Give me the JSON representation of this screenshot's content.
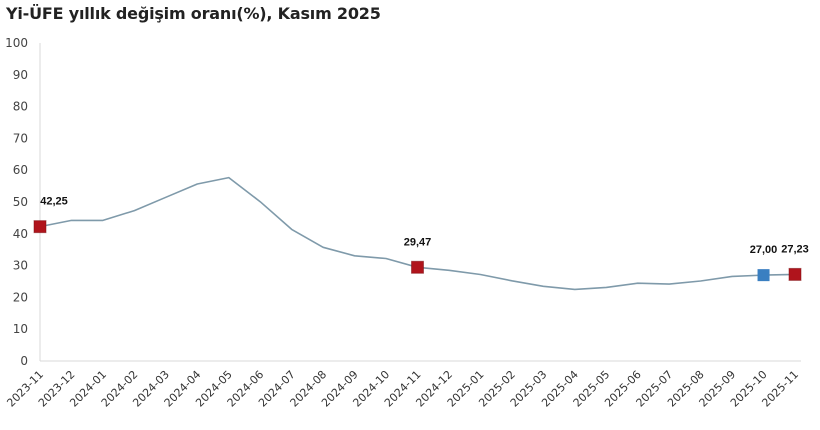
{
  "title": "Yi-ÜFE yıllık değişim oranı(%), Kasım 2025",
  "colors": {
    "line": "#7f9aaa",
    "highlight_red": "#b0141c",
    "highlight_blue": "#3a7fc1",
    "axis": "#d9d9d9"
  },
  "chart_data": {
    "type": "line",
    "title": "Yi-ÜFE yıllık değişim oranı(%), Kasım 2025",
    "xlabel": "",
    "ylabel": "",
    "ylim": [
      0,
      100
    ],
    "yticks": [
      0,
      10,
      20,
      30,
      40,
      50,
      60,
      70,
      80,
      90,
      100
    ],
    "grid": false,
    "legend": null,
    "categories": [
      "2023-11",
      "2023-12",
      "2024-01",
      "2024-02",
      "2024-03",
      "2024-04",
      "2024-05",
      "2024-06",
      "2024-07",
      "2024-08",
      "2024-09",
      "2024-10",
      "2024-11",
      "2024-12",
      "2025-01",
      "2025-02",
      "2025-03",
      "2025-04",
      "2025-05",
      "2025-06",
      "2025-07",
      "2025-08",
      "2025-09",
      "2025-10",
      "2025-11"
    ],
    "series": [
      {
        "name": "Yi-ÜFE yıllık değişim oranı(%)",
        "values": [
          42.25,
          44.2,
          44.2,
          47.29,
          51.47,
          55.66,
          57.68,
          50.09,
          41.37,
          35.75,
          33.09,
          32.24,
          29.47,
          28.52,
          27.2,
          25.21,
          23.5,
          22.5,
          23.13,
          24.45,
          24.19,
          25.16,
          26.59,
          27.0,
          27.23
        ]
      }
    ],
    "annotations": [
      {
        "category": "2023-11",
        "label": "42,25",
        "marker": "red-square"
      },
      {
        "category": "2024-11",
        "label": "29,47",
        "marker": "red-square"
      },
      {
        "category": "2025-10",
        "label": "27,00",
        "marker": "blue-square"
      },
      {
        "category": "2025-11",
        "label": "27,23",
        "marker": "red-square"
      }
    ]
  }
}
